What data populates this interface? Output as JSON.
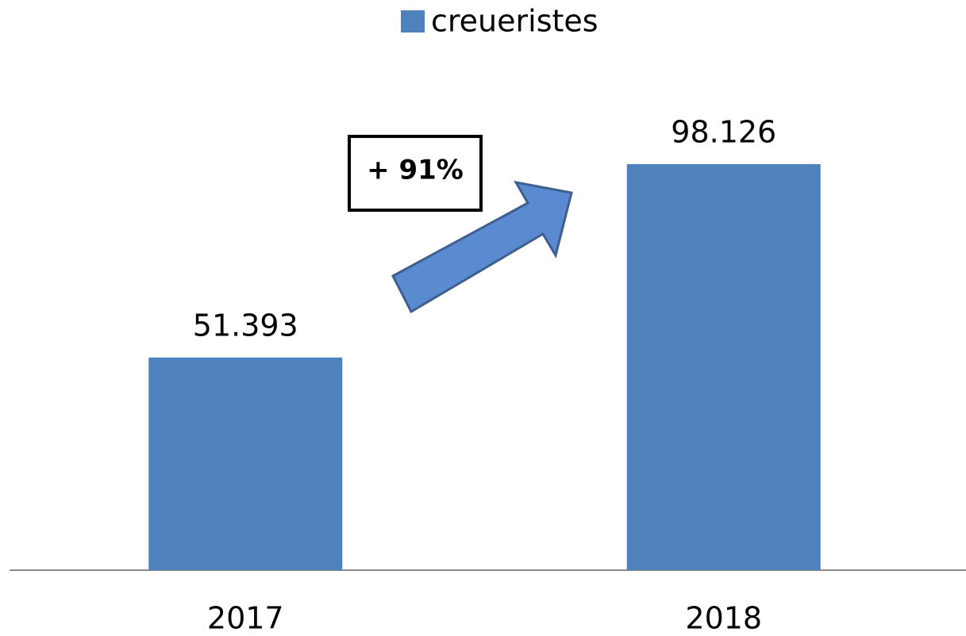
{
  "chart_data": {
    "type": "bar",
    "categories": [
      "2017",
      "2018"
    ],
    "series": [
      {
        "name": "creueristes",
        "color": "#4f81bd",
        "values": [
          51393,
          98126
        ],
        "value_labels": [
          "51.393",
          "98.126"
        ]
      }
    ],
    "annotation": "+ 91%",
    "legend": "top"
  }
}
